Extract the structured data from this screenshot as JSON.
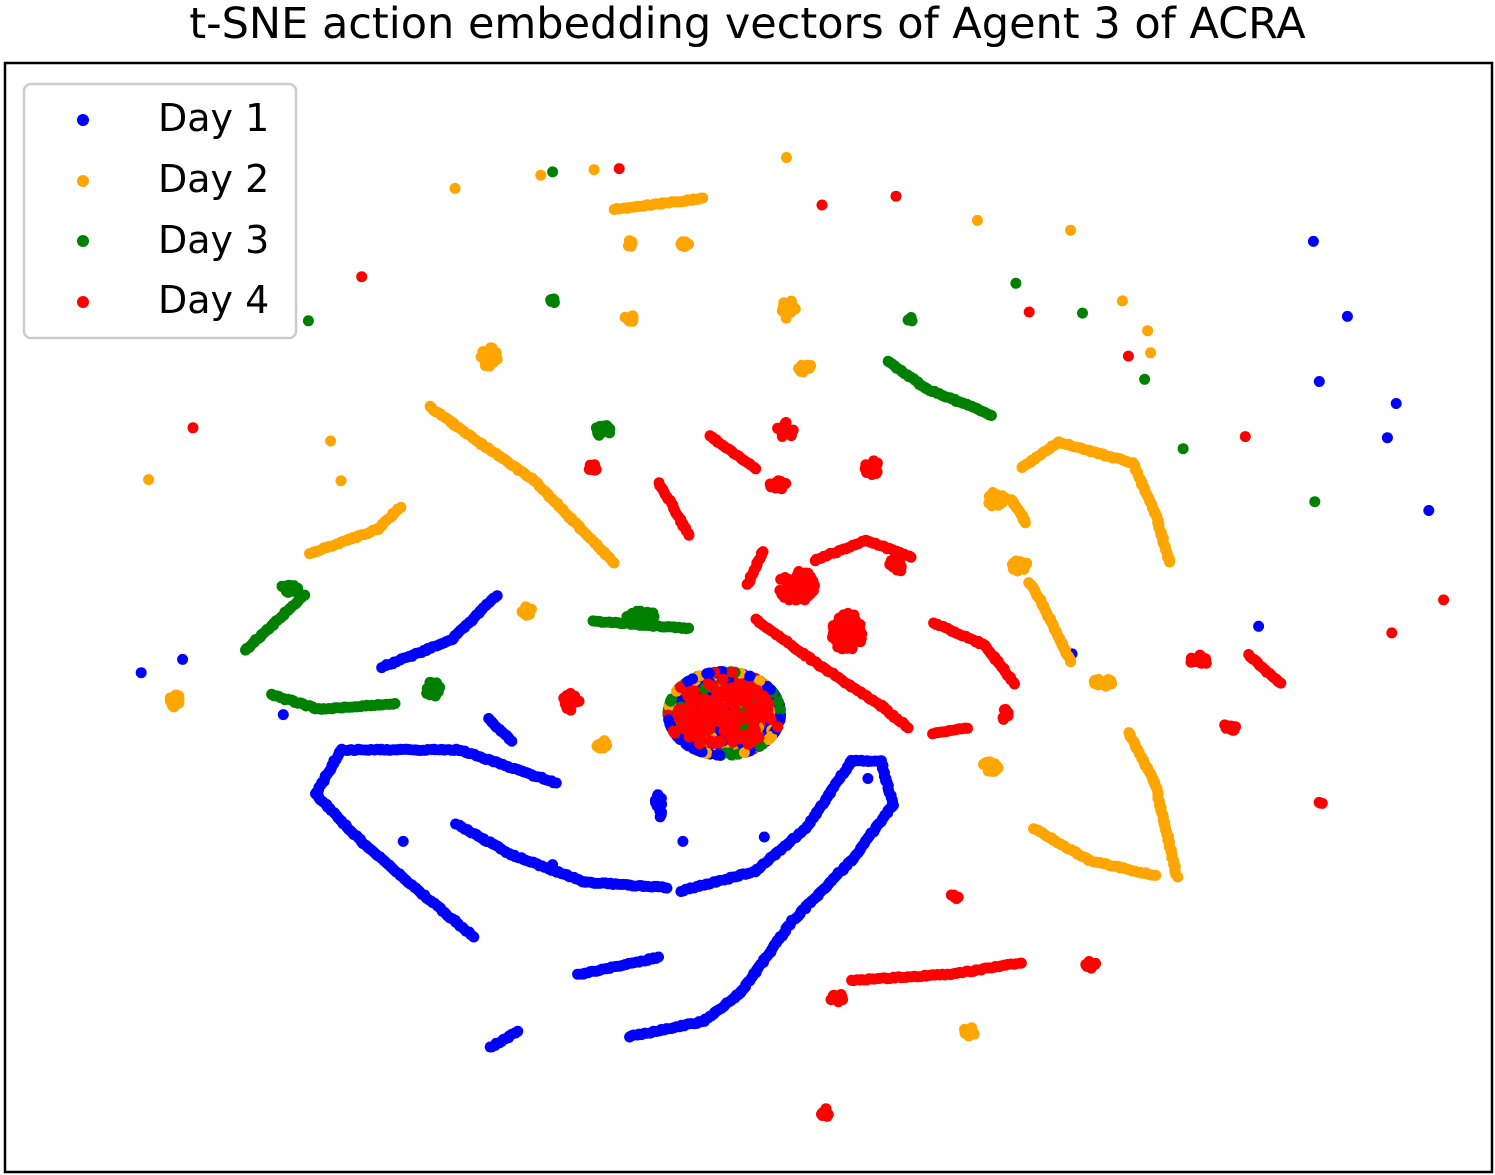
{
  "chart_data": {
    "type": "scatter",
    "title": "t-SNE action embedding vectors of Agent 3 of ACRA",
    "xlabel": "",
    "ylabel": "",
    "axes": "hidden",
    "grid": false,
    "legend_placement": "top-left",
    "xlim": [
      0,
      1000
    ],
    "ylim": [
      0,
      1000
    ],
    "series": [
      {
        "name": "Day 1",
        "color": "#0000ff",
        "arcs": [
          [
            90,
            550
          ],
          [
            118,
            538
          ],
          [
            186,
            588
          ],
          [
            267,
            703
          ],
          [
            368,
            724
          ],
          [
            456,
            703
          ],
          [
            511,
            699
          ],
          [
            581,
            646
          ],
          [
            719,
            533
          ],
          [
            845,
            508
          ],
          [
            932,
            337
          ],
          [
            905,
            227
          ],
          [
            882,
            159
          ],
          [
            886,
            286
          ],
          [
            938,
            306
          ],
          [
            960,
            403
          ]
        ],
        "strokes": [
          [
            [
              253,
              545
            ],
            [
              300,
              520
            ],
            [
              330,
              480
            ]
          ],
          [
            [
              325,
              592
            ],
            [
              340,
              612
            ]
          ],
          [
            [
              370,
              650
            ],
            [
              305,
              620
            ],
            [
              225,
              620
            ],
            [
              208,
              660
            ],
            [
              240,
              705
            ],
            [
              315,
              790
            ]
          ],
          [
            [
              303,
              687
            ],
            [
              340,
              715
            ],
            [
              390,
              740
            ],
            [
              445,
              745
            ]
          ],
          [
            [
              455,
              748
            ],
            [
              505,
              730
            ],
            [
              540,
              690
            ],
            [
              570,
              630
            ],
            [
              590,
              630
            ],
            [
              598,
              670
            ],
            [
              570,
              720
            ],
            [
              530,
              775
            ],
            [
              495,
              840
            ],
            [
              470,
              866
            ],
            [
              420,
              880
            ]
          ],
          [
            [
              385,
              824
            ],
            [
              440,
              808
            ]
          ],
          [
            [
              326,
              890
            ],
            [
              345,
              875
            ]
          ]
        ],
        "clusters": [
          [
            440,
            666,
            6,
            12,
            14
          ],
          [
            441,
            678,
            3,
            6,
            6
          ]
        ]
      },
      {
        "name": "Day 2",
        "color": "#ffa500",
        "arcs": [
          [
            95,
            375
          ],
          [
            218,
            340
          ],
          [
            225,
            376
          ],
          [
            302,
            111
          ],
          [
            360,
            99
          ],
          [
            396,
            94
          ],
          [
            526,
            83
          ],
          [
            655,
            140
          ],
          [
            718,
            149
          ],
          [
            753,
            213
          ],
          [
            770,
            240
          ],
          [
            772,
            260
          ]
        ],
        "strokes": [
          [
            [
              285,
              309
            ],
            [
              320,
              343
            ],
            [
              355,
              375
            ],
            [
              410,
              451
            ]
          ],
          [
            [
              410,
              130
            ],
            [
              470,
              120
            ]
          ],
          [
            [
              685,
              364
            ],
            [
              710,
              341
            ],
            [
              760,
              360
            ],
            [
              775,
              405
            ],
            [
              785,
              450
            ]
          ],
          [
            [
              678,
              393
            ],
            [
              688,
              414
            ]
          ],
          [
            [
              690,
              468
            ],
            [
              700,
              490
            ],
            [
              718,
              540
            ]
          ],
          [
            [
              757,
              604
            ],
            [
              775,
              650
            ],
            [
              790,
              735
            ]
          ],
          [
            [
              693,
              691
            ],
            [
              730,
              720
            ],
            [
              775,
              734
            ]
          ],
          [
            [
              204,
              442
            ],
            [
              250,
              420
            ],
            [
              265,
              400
            ]
          ]
        ],
        "clusters": [
          [
            113,
            576,
            9,
            12,
            20
          ],
          [
            325,
            264,
            12,
            18,
            22
          ],
          [
            350,
            494,
            8,
            8,
            14
          ],
          [
            402,
            615,
            10,
            8,
            16
          ],
          [
            527,
            220,
            10,
            18,
            18
          ],
          [
            539,
            274,
            10,
            10,
            14
          ],
          [
            668,
            393,
            12,
            14,
            18
          ],
          [
            683,
            453,
            14,
            10,
            18
          ],
          [
            740,
            559,
            14,
            8,
            18
          ],
          [
            664,
            635,
            11,
            10,
            18
          ],
          [
            650,
            875,
            8,
            10,
            16
          ],
          [
            458,
            161,
            8,
            6,
            10
          ],
          [
            421,
            161,
            6,
            6,
            8
          ],
          [
            420,
            229,
            8,
            6,
            10
          ]
        ]
      },
      {
        "name": "Day 3",
        "color": "#008000",
        "arcs": [
          [
            203,
            231
          ],
          [
            368,
            96
          ],
          [
            681,
            197
          ],
          [
            726,
            224
          ],
          [
            768,
            284
          ],
          [
            794,
            347
          ],
          [
            883,
            395
          ]
        ],
        "strokes": [
          [
            [
              160,
              530
            ],
            [
              180,
              505
            ],
            [
              200,
              480
            ]
          ],
          [
            [
              178,
              570
            ],
            [
              210,
              583
            ],
            [
              262,
              578
            ]
          ],
          [
            [
              595,
              268
            ],
            [
              620,
              292
            ],
            [
              665,
              317
            ]
          ],
          [
            [
              395,
              503
            ],
            [
              460,
              510
            ]
          ]
        ],
        "clusters": [
          [
            190,
            474,
            12,
            8,
            16
          ],
          [
            287,
            565,
            10,
            14,
            16
          ],
          [
            402,
            330,
            10,
            12,
            14
          ],
          [
            368,
            213,
            4,
            4,
            5
          ],
          [
            427,
            498,
            22,
            8,
            28
          ],
          [
            610,
            230,
            4,
            4,
            5
          ]
        ]
      },
      {
        "name": "Day 4",
        "color": "#ff0000",
        "arcs": [
          [
            125,
            328
          ],
          [
            239,
            191
          ],
          [
            413,
            93
          ],
          [
            550,
            126
          ],
          [
            600,
            118
          ],
          [
            690,
            223
          ],
          [
            757,
            263
          ],
          [
            836,
            336
          ],
          [
            970,
            484
          ],
          [
            935,
            514
          ]
        ],
        "strokes": [
          [
            [
              440,
              378
            ],
            [
              460,
              425
            ]
          ],
          [
            [
              474,
              335
            ],
            [
              505,
              365
            ]
          ],
          [
            [
              545,
              448
            ],
            [
              580,
              430
            ],
            [
              610,
              445
            ]
          ],
          [
            [
              625,
              505
            ],
            [
              660,
              525
            ],
            [
              680,
              560
            ]
          ],
          [
            [
              625,
              605
            ],
            [
              648,
              600
            ]
          ],
          [
            [
              505,
              502
            ],
            [
              550,
              545
            ],
            [
              590,
              580
            ],
            [
              608,
              600
            ]
          ],
          [
            [
              838,
              534
            ],
            [
              860,
              560
            ]
          ],
          [
            [
              570,
              829
            ],
            [
              640,
              823
            ],
            [
              685,
              813
            ]
          ],
          [
            [
              510,
              440
            ],
            [
              500,
              470
            ]
          ]
        ],
        "clusters": [
          [
            380,
            576,
            12,
            16,
            22
          ],
          [
            395,
            364,
            8,
            6,
            10
          ],
          [
            525,
            329,
            12,
            18,
            18
          ],
          [
            520,
            380,
            14,
            8,
            14
          ],
          [
            584,
            364,
            12,
            14,
            16
          ],
          [
            600,
            453,
            10,
            12,
            12
          ],
          [
            805,
            538,
            14,
            10,
            16
          ],
          [
            825,
            600,
            10,
            10,
            12
          ],
          [
            640,
            752,
            6,
            6,
            6
          ],
          [
            560,
            845,
            10,
            8,
            10
          ],
          [
            732,
            815,
            8,
            8,
            8
          ],
          [
            552,
            950,
            5,
            10,
            8
          ],
          [
            533,
            471,
            25,
            30,
            60
          ],
          [
            567,
            513,
            22,
            34,
            60
          ],
          [
            887,
            668,
            3,
            3,
            3
          ],
          [
            674,
            588,
            6,
            10,
            8
          ]
        ]
      },
      {
        "name": "Center mixed cluster",
        "colors": [
          "#0000ff",
          "#ffa500",
          "#008000",
          "#ff0000"
        ],
        "center": [
          484,
          587
        ],
        "radius": [
          38,
          38
        ]
      }
    ]
  },
  "legend": {
    "items": [
      {
        "label": "Day 1",
        "color": "#0000ff"
      },
      {
        "label": "Day 2",
        "color": "#ffa500"
      },
      {
        "label": "Day 3",
        "color": "#008000"
      },
      {
        "label": "Day 4",
        "color": "#ff0000"
      }
    ]
  }
}
